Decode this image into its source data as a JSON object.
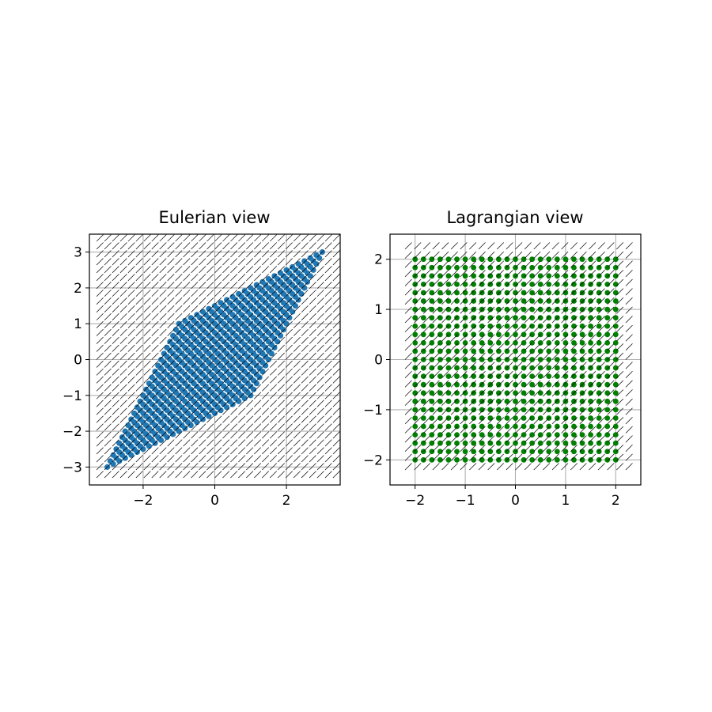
{
  "chart_data": [
    {
      "type": "scatter",
      "title": "Eulerian view",
      "xlabel": "",
      "ylabel": "",
      "xlim": [
        -3.5,
        3.5
      ],
      "ylim": [
        -3.5,
        3.5
      ],
      "xticks": [
        -2,
        0,
        2
      ],
      "yticks": [
        -3,
        -2,
        -1,
        0,
        1,
        2,
        3
      ],
      "xtick_labels": [
        "−2",
        "0",
        "2"
      ],
      "ytick_labels": [
        "−3",
        "−2",
        "−1",
        "0",
        "1",
        "2",
        "3"
      ],
      "grid": true,
      "marker_color": "#1f77b4",
      "points": {
        "description": "25 x 25 grid of material points mapped by x = X + 0.5*Y, y = 0.5*X + Y",
        "X_range": [
          -2,
          2
        ],
        "Y_range": [
          -2,
          2
        ],
        "count_per_axis": 25,
        "map": [
          [
            1,
            0.5
          ],
          [
            0.5,
            1
          ]
        ]
      },
      "vector_field": {
        "grid_range": [
          -3.3,
          3.3
        ],
        "count_per_axis": 31,
        "direction": [
          1,
          1
        ]
      }
    },
    {
      "type": "scatter",
      "title": "Lagrangian view",
      "xlabel": "",
      "ylabel": "",
      "xlim": [
        -2.5,
        2.5
      ],
      "ylim": [
        -2.5,
        2.5
      ],
      "xticks": [
        -2,
        -1,
        0,
        1,
        2
      ],
      "yticks": [
        -2,
        -1,
        0,
        1,
        2
      ],
      "xtick_labels": [
        "−2",
        "−1",
        "0",
        "1",
        "2"
      ],
      "ytick_labels": [
        "−2",
        "−1",
        "0",
        "1",
        "2"
      ],
      "grid": true,
      "marker_color": "#008000",
      "points": {
        "description": "25 x 25 grid of material points",
        "X_range": [
          -2,
          2
        ],
        "Y_range": [
          -2,
          2
        ],
        "count_per_axis": 25
      },
      "vector_field": {
        "grid_range": [
          -2.2,
          2.2
        ],
        "count_per_axis": 25,
        "direction": [
          1,
          1
        ]
      }
    }
  ]
}
